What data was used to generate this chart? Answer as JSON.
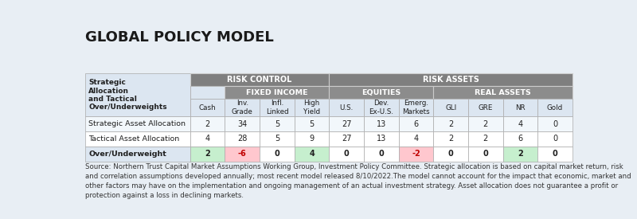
{
  "title": "GLOBAL POLICY MODEL",
  "background_color": "#e8eef4",
  "header_dark_bg": "#7f7f7f",
  "header_mid_bg": "#8c8c8c",
  "label_area_bg": "#dce6f1",
  "row1_bg": "#f2f7fb",
  "row2_bg": "#ffffff",
  "ou_row_bg": "#dce6f1",
  "overunder_pos": "#c6efce",
  "overunder_neg": "#ffc7ce",
  "overunder_zero": "#ffffff",
  "header_text_color": "#ffffff",
  "label_text_color": "#1f1f1f",
  "data_text_color": "#1f1f1f",
  "neg_val_color": "#c00000",
  "source_text": "Source: Northern Trust Capital Market Assumptions Working Group, Investment Policy Committee. Strategic allocation is based on capital market return, risk and correlation assumptions developed annually; most recent model released 8/10/2022.The model cannot account for the impact that economic, market and other factors may have on the implementation and ongoing management of an actual investment strategy. Asset allocation does not guarantee a profit or protection against a loss in declining markets.",
  "rows": [
    {
      "label": "Strategic Asset Allocation",
      "values": [
        2,
        34,
        5,
        5,
        27,
        13,
        6,
        2,
        2,
        4,
        0
      ],
      "bold": false
    },
    {
      "label": "Tactical Asset Allocation",
      "values": [
        4,
        28,
        5,
        9,
        27,
        13,
        4,
        2,
        2,
        6,
        0
      ],
      "bold": false
    },
    {
      "label": "Over/Underweight",
      "values": [
        2,
        -6,
        0,
        4,
        0,
        0,
        -2,
        0,
        0,
        2,
        0
      ],
      "bold": true
    }
  ],
  "col_labels": [
    "Cash",
    "Inv.\nGrade",
    "Infl.\nLinked",
    "High\nYield",
    "U.S.",
    "Dev.\nEx-U.S.",
    "Emerg.\nMarkets",
    "GLI",
    "GRE",
    "NR",
    "Gold"
  ]
}
